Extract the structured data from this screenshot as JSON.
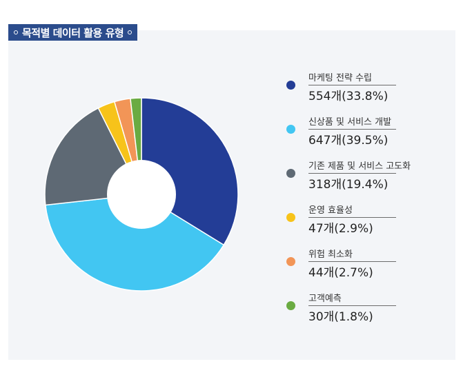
{
  "title": "목적별 데이터 활용 유형",
  "chart_data": {
    "type": "pie",
    "title": "목적별 데이터 활용 유형",
    "donut": true,
    "legend_position": "right",
    "slices": [
      {
        "name": "마케팅 전략 수립",
        "count": 554,
        "percent": 33.8,
        "display": "554개(33.8%)",
        "color": "#233d96"
      },
      {
        "name": "신상품 및 서비스 개발",
        "count": 647,
        "percent": 39.5,
        "display": "647개(39.5%)",
        "color": "#42c6f2"
      },
      {
        "name": "기존 제품 및 서비스 고도화",
        "count": 318,
        "percent": 19.4,
        "display": "318개(19.4%)",
        "color": "#5e6974"
      },
      {
        "name": "운영 효율성",
        "count": 47,
        "percent": 2.9,
        "display": "47개(2.9%)",
        "color": "#f7c31a"
      },
      {
        "name": "위험 최소화",
        "count": 44,
        "percent": 2.7,
        "display": "44개(2.7%)",
        "color": "#f29557"
      },
      {
        "name": "고객예측",
        "count": 30,
        "percent": 1.8,
        "display": "30개(1.8%)",
        "color": "#6aab42"
      }
    ]
  }
}
